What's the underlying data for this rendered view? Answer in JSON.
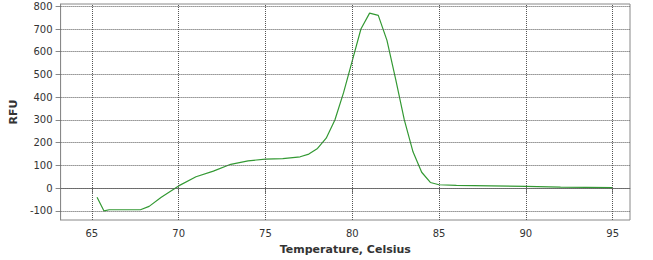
{
  "chart_data": {
    "type": "line",
    "x_label": "Temperature, Celsius",
    "y_label": "RFU",
    "x": [
      65.3,
      65.7,
      66,
      67,
      67.8,
      68.3,
      69,
      70,
      71,
      72,
      73,
      74,
      75,
      76,
      77,
      77.5,
      78,
      78.5,
      79,
      79.5,
      80,
      80.5,
      81,
      81.5,
      82,
      82.5,
      83,
      83.5,
      84,
      84.5,
      85,
      86,
      88,
      90,
      92,
      95
    ],
    "values": [
      -40,
      -100,
      -95,
      -95,
      -95,
      -80,
      -40,
      10,
      50,
      75,
      105,
      120,
      128,
      130,
      138,
      150,
      175,
      220,
      300,
      420,
      560,
      700,
      770,
      760,
      650,
      480,
      300,
      160,
      70,
      25,
      15,
      12,
      10,
      8,
      5,
      2
    ],
    "color": "#339933",
    "xlim": [
      63.2,
      96
    ],
    "xticks": [
      65,
      70,
      75,
      80,
      85,
      90,
      95
    ],
    "ylim": [
      -140,
      810
    ],
    "yticks": [
      -100,
      0,
      100,
      200,
      300,
      400,
      500,
      600,
      700,
      800
    ],
    "grid": true
  }
}
